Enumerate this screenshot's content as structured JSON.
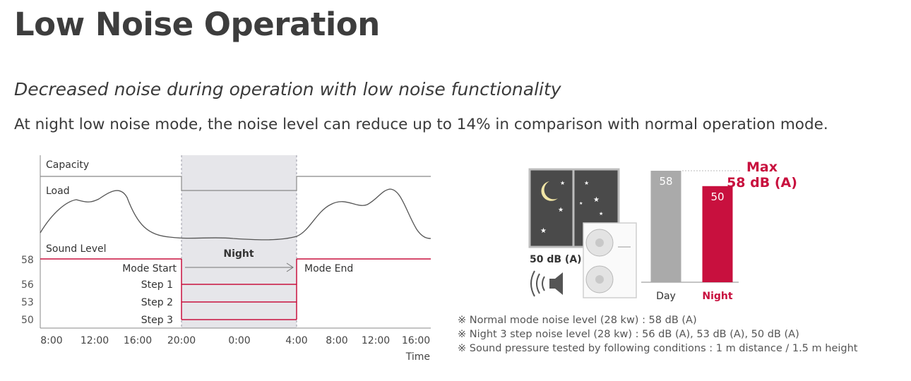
{
  "title": "Low Noise Operation",
  "subtitle": "Decreased noise during operation with low noise functionality",
  "description": "At night low noise mode, the noise level can reduce up to 14% in comparison with normal operation mode.",
  "colors": {
    "accent": "#c8103e",
    "gray_line": "#888888",
    "night_band": "#e6e6ea",
    "day_bar": "#aaaaaa",
    "night_bar": "#c8103e"
  },
  "chart_data": [
    {
      "type": "line",
      "labels": {
        "capacity": "Capacity",
        "load": "Load",
        "sound_level": "Sound Level",
        "night": "Night",
        "mode_start": "Mode Start",
        "mode_end": "Mode End"
      },
      "x_ticks": [
        "8:00",
        "12:00",
        "16:00",
        "20:00",
        "0:00",
        "4:00",
        "8:00",
        "12:00",
        "16:00"
      ],
      "xlabel": "Time",
      "y_ticks": [
        58,
        56,
        53,
        50
      ],
      "steps": [
        {
          "label": "Step 1",
          "value": 56
        },
        {
          "label": "Step 2",
          "value": 53
        },
        {
          "label": "Step 3",
          "value": 50
        }
      ],
      "night_window": [
        "20:00",
        "4:00"
      ]
    },
    {
      "type": "bar",
      "categories": [
        "Day",
        "Night"
      ],
      "values": [
        58,
        50
      ],
      "annotation_line1": "Max",
      "annotation_line2": "58 dB (A)",
      "unit_label": "50 dB (A)"
    }
  ],
  "notes": [
    "※ Normal mode noise level (28 kw) : 58 dB (A)",
    "※ Night 3 step noise level (28 kw) :  56 dB (A), 53 dB (A), 50 dB (A)",
    "※ Sound pressure tested by following conditions : 1 m distance / 1.5 m height"
  ]
}
